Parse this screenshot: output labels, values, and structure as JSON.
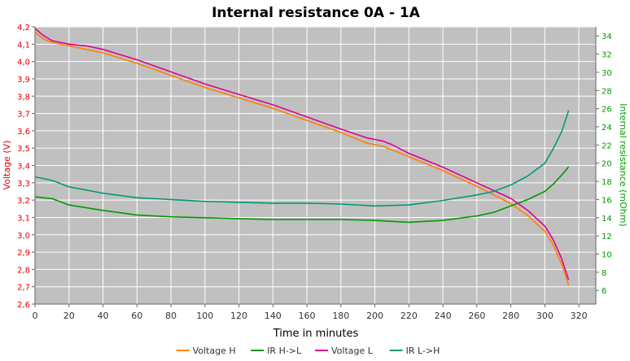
{
  "chart_data": {
    "type": "line",
    "title": "Internal resistance  0A - 1A",
    "xlabel": "Time in minutes",
    "ylabel_left": "Voltage (V)",
    "ylabel_right": "Internal resistance (mOhm)",
    "xlim": [
      0,
      330
    ],
    "ylim_left": [
      2.6,
      4.2
    ],
    "ylim_right": [
      4.5,
      35
    ],
    "x_ticks": [
      0,
      20,
      40,
      60,
      80,
      100,
      120,
      140,
      160,
      180,
      200,
      220,
      240,
      260,
      280,
      300,
      320
    ],
    "y_left_ticks": [
      "2,6",
      "2,7",
      "2,8",
      "2,9",
      "3,0",
      "3,1",
      "3,2",
      "3,3",
      "3,4",
      "3,5",
      "3,6",
      "3,7",
      "3,8",
      "3,9",
      "4,0",
      "4,1",
      "4,2"
    ],
    "y_right_ticks": [
      6,
      8,
      10,
      12,
      14,
      16,
      18,
      20,
      22,
      24,
      26,
      28,
      30,
      32,
      34
    ],
    "grid": true,
    "legend_position": "bottom",
    "colors": {
      "background": "#c0c0c0",
      "grid": "#ffffff",
      "left_axis": "#e00000",
      "right_axis": "#009900",
      "title": "#000000"
    },
    "series": [
      {
        "name": "Voltage H",
        "axis": "left",
        "color": "#ff8000",
        "x": [
          0,
          5,
          10,
          20,
          30,
          40,
          50,
          60,
          80,
          100,
          120,
          140,
          160,
          180,
          195,
          205,
          210,
          220,
          240,
          260,
          280,
          290,
          300,
          305,
          310,
          314
        ],
        "y": [
          4.17,
          4.13,
          4.11,
          4.09,
          4.07,
          4.05,
          4.02,
          3.99,
          3.92,
          3.85,
          3.79,
          3.73,
          3.66,
          3.59,
          3.53,
          3.51,
          3.49,
          3.45,
          3.37,
          3.28,
          3.18,
          3.11,
          3.02,
          2.94,
          2.83,
          2.71
        ]
      },
      {
        "name": "IR H->L",
        "axis": "right",
        "color": "#009900",
        "x": [
          0,
          10,
          20,
          40,
          60,
          80,
          100,
          120,
          140,
          160,
          180,
          200,
          220,
          240,
          260,
          270,
          280,
          290,
          300,
          305,
          310,
          314
        ],
        "y": [
          16.3,
          16.1,
          15.4,
          14.8,
          14.3,
          14.1,
          14.0,
          13.9,
          13.8,
          13.8,
          13.8,
          13.7,
          13.5,
          13.7,
          14.2,
          14.6,
          15.3,
          16.0,
          16.9,
          17.7,
          18.7,
          19.6
        ]
      },
      {
        "name": "Voltage L",
        "axis": "left",
        "color": "#e00090",
        "x": [
          0,
          5,
          10,
          20,
          30,
          40,
          50,
          60,
          80,
          100,
          120,
          140,
          160,
          180,
          195,
          205,
          210,
          220,
          240,
          260,
          280,
          290,
          300,
          305,
          310,
          314
        ],
        "y": [
          4.19,
          4.15,
          4.12,
          4.1,
          4.09,
          4.07,
          4.04,
          4.01,
          3.94,
          3.87,
          3.81,
          3.75,
          3.68,
          3.61,
          3.56,
          3.54,
          3.52,
          3.47,
          3.39,
          3.3,
          3.21,
          3.14,
          3.05,
          2.97,
          2.86,
          2.74
        ]
      },
      {
        "name": "IR L->H",
        "axis": "right",
        "color": "#00997a",
        "x": [
          0,
          10,
          20,
          40,
          60,
          80,
          100,
          120,
          140,
          160,
          180,
          200,
          220,
          240,
          260,
          270,
          280,
          290,
          300,
          305,
          310,
          314
        ],
        "y": [
          18.5,
          18.1,
          17.4,
          16.7,
          16.2,
          16.0,
          15.8,
          15.7,
          15.6,
          15.6,
          15.5,
          15.3,
          15.4,
          15.9,
          16.5,
          16.9,
          17.6,
          18.6,
          20.0,
          21.6,
          23.5,
          25.8
        ]
      }
    ]
  }
}
